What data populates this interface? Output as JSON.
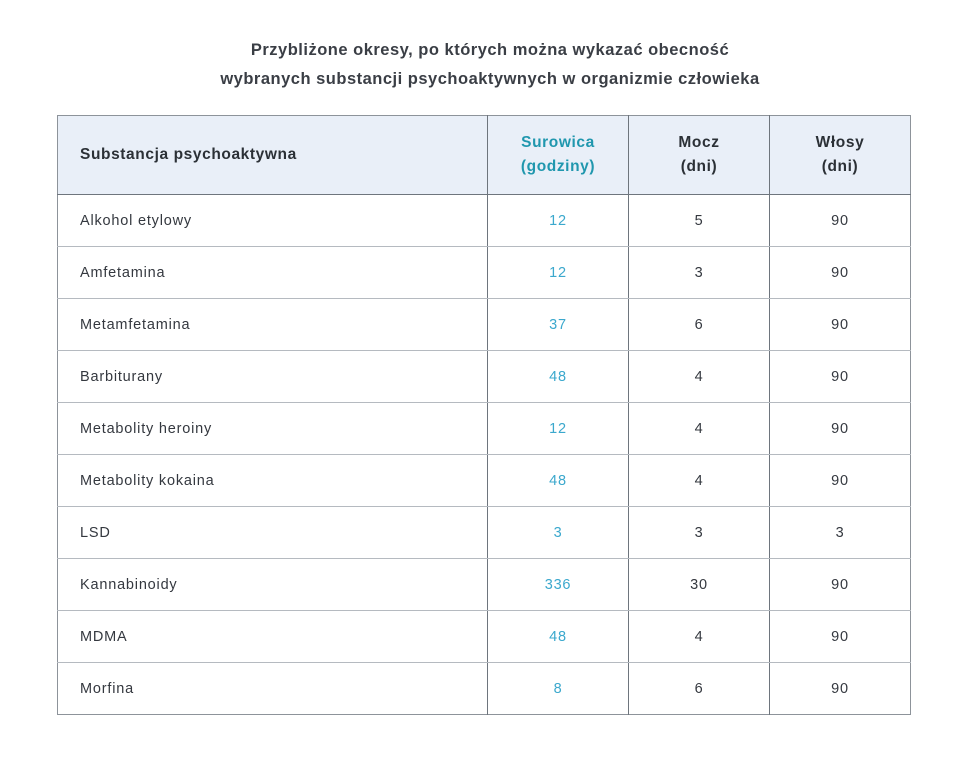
{
  "page": {
    "title": "Przybliżone okresy, po których można wykazać obecność wybranych substancji psychoaktywnych w organizmie człowieka",
    "title_line1": "Przybliżone okresy, po których można wykazać obecność",
    "title_line2": "wybranych substancji psychoaktywnych w organizmie człowieka"
  },
  "colors": {
    "header_bg": "#e9eff8",
    "accent_serum_header": "#2097ae",
    "accent_serum_values": "#3ba8cd",
    "text_dark": "#34383f",
    "grid_vertical": "#6e757d",
    "grid_horizontal": "#b5bac0",
    "outer_border": "#8d939a"
  },
  "table": {
    "columns": [
      {
        "label": "Substancja psychoaktywna",
        "sub": ""
      },
      {
        "label": "Surowica",
        "sub": "(godziny)"
      },
      {
        "label": "Mocz",
        "sub": "(dni)"
      },
      {
        "label": "Włosy",
        "sub": "(dni)"
      }
    ]
  },
  "chart_data": {
    "type": "table",
    "title": "Przybliżone okresy, po których można wykazać obecność wybranych substancji psychoaktywnych w organizmie człowieka",
    "columns": [
      "Substancja psychoaktywna",
      "Surowica (godziny)",
      "Mocz (dni)",
      "Włosy (dni)"
    ],
    "rows": [
      {
        "substance": "Alkohol etylowy",
        "serum": "12",
        "urine": "5",
        "hair": "90"
      },
      {
        "substance": "Amfetamina",
        "serum": "12",
        "urine": "3",
        "hair": "90"
      },
      {
        "substance": "Metamfetamina",
        "serum": "37",
        "urine": "6",
        "hair": "90"
      },
      {
        "substance": "Barbiturany",
        "serum": "48",
        "urine": "4",
        "hair": "90"
      },
      {
        "substance": "Metabolity heroiny",
        "serum": "12",
        "urine": "4",
        "hair": "90"
      },
      {
        "substance": "Metabolity kokaina",
        "serum": "48",
        "urine": "4",
        "hair": "90"
      },
      {
        "substance": "LSD",
        "serum": "3",
        "urine": "3",
        "hair": "3"
      },
      {
        "substance": "Kannabinoidy",
        "serum": "336",
        "urine": "30",
        "hair": "90"
      },
      {
        "substance": "MDMA",
        "serum": "48",
        "urine": "4",
        "hair": "90"
      },
      {
        "substance": "Morfina",
        "serum": "8",
        "urine": "6",
        "hair": "90"
      }
    ]
  }
}
